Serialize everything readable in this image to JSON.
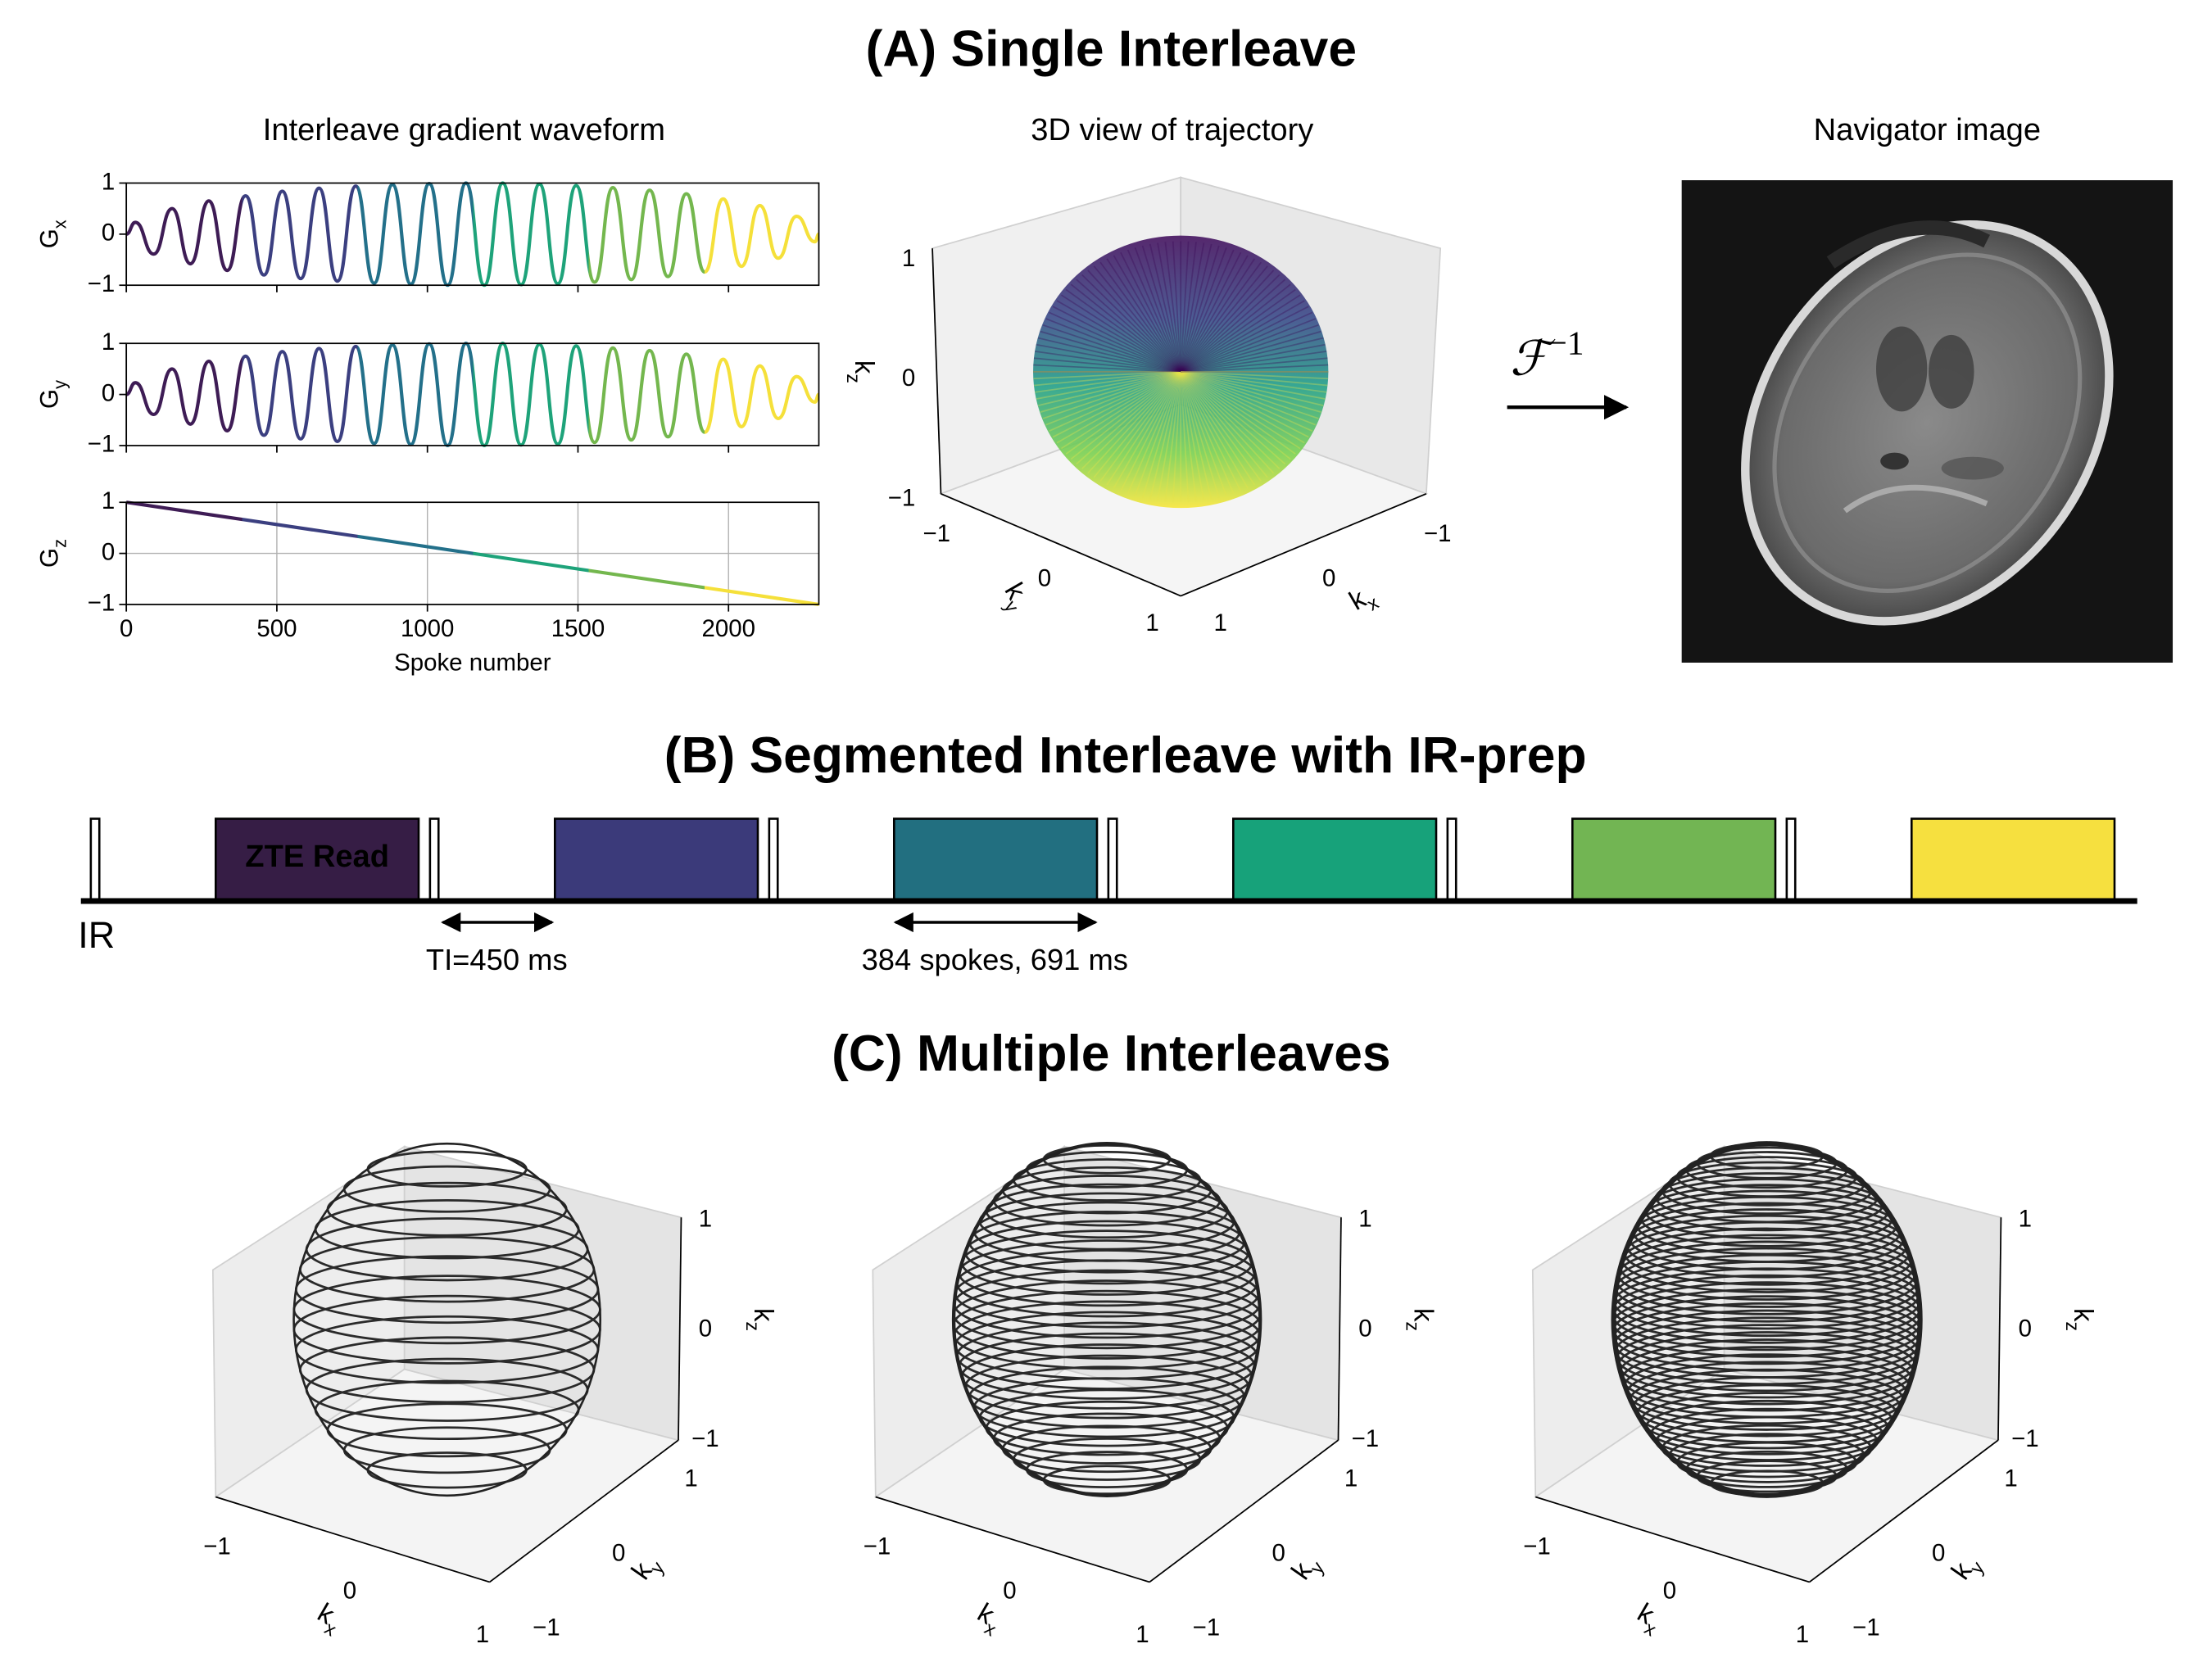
{
  "panel_a": {
    "title": "(A) Single Interleave",
    "waveform": {
      "title": "Interleave gradient waveform",
      "xlabel": "Spoke number",
      "xlim": [
        0,
        2300
      ],
      "xticks": [
        0,
        500,
        1000,
        1500,
        2000
      ],
      "x": [
        0,
        30,
        91,
        152,
        213,
        274,
        335,
        396,
        457,
        518,
        579,
        640,
        701,
        762,
        823,
        884,
        945,
        1006,
        1067,
        1128,
        1189,
        1250,
        1311,
        1372,
        1433,
        1494,
        1555,
        1616,
        1677,
        1738,
        1799,
        1860,
        1921,
        1982,
        2043,
        2104,
        2165,
        2226,
        2287,
        2300
      ],
      "segment_edges": [
        0,
        384,
        768,
        1152,
        1536,
        1920,
        2304
      ],
      "colors": [
        "#3e1c55",
        "#3b3f80",
        "#23708a",
        "#1ea37a",
        "#74b74e",
        "#f5e03a"
      ],
      "subplots": [
        {
          "symbol": "G",
          "subscript": "x",
          "ylim": [
            -1,
            1
          ],
          "yticks": [
            {
              "value": -1,
              "label": "−1"
            },
            0,
            1
          ],
          "values": [
            0,
            0.23,
            -0.39,
            0.5,
            -0.58,
            0.65,
            -0.71,
            0.75,
            -0.8,
            0.84,
            -0.87,
            0.9,
            -0.92,
            0.94,
            -0.96,
            0.97,
            -0.98,
            0.99,
            -1,
            1,
            -1,
            1,
            -0.99,
            0.98,
            -0.97,
            0.95,
            -0.94,
            0.91,
            -0.89,
            0.86,
            -0.83,
            0.79,
            -0.74,
            0.69,
            -0.63,
            0.56,
            -0.47,
            0.35,
            -0.15,
            0
          ]
        },
        {
          "symbol": "G",
          "subscript": "y",
          "ylim": [
            -1,
            1
          ],
          "yticks": [
            {
              "value": -1,
              "label": "−1"
            },
            0,
            1
          ],
          "values": [
            0,
            0.23,
            -0.39,
            0.5,
            -0.58,
            0.65,
            -0.71,
            0.75,
            -0.8,
            0.84,
            -0.87,
            0.9,
            -0.92,
            0.94,
            -0.96,
            0.97,
            -0.98,
            0.99,
            -1,
            1,
            -1,
            1,
            -0.99,
            0.98,
            -0.97,
            0.95,
            -0.94,
            0.91,
            -0.89,
            0.86,
            -0.83,
            0.79,
            -0.74,
            0.69,
            -0.63,
            0.56,
            -0.47,
            0.35,
            -0.15,
            0
          ]
        },
        {
          "symbol": "G",
          "subscript": "z",
          "ylim": [
            -1,
            1
          ],
          "yticks": [
            {
              "value": -1,
              "label": "−1"
            },
            0,
            1
          ],
          "x": [
            0,
            2300
          ],
          "values": [
            1,
            -1
          ],
          "grid": true
        }
      ]
    },
    "trajectory": {
      "title": "3D view of trajectory",
      "kx": {
        "symbol": "k",
        "subscript": "x",
        "lim": [
          -1,
          1
        ],
        "ticks": [
          {
            "value": -1,
            "label": "−1"
          },
          0,
          1
        ]
      },
      "ky": {
        "symbol": "k",
        "subscript": "y",
        "lim": [
          -1,
          1
        ],
        "ticks": [
          {
            "value": -1,
            "label": "−1"
          },
          0,
          1
        ]
      },
      "kz": {
        "symbol": "k",
        "subscript": "z",
        "lim": [
          -1,
          1
        ],
        "ticks": [
          {
            "value": -1,
            "label": "−1"
          },
          0,
          1
        ]
      }
    },
    "transform": {
      "symbol": "ℱ",
      "superscript": "−1"
    },
    "navigator": {
      "title": "Navigator image"
    }
  },
  "panel_b": {
    "title": "(B) Segmented Interleave with IR-prep",
    "blocks": [
      {
        "color": "#361d45",
        "label": "ZTE Read"
      },
      {
        "color": "#3b3a7a"
      },
      {
        "color": "#226f80"
      },
      {
        "color": "#17a27a"
      },
      {
        "color": "#72b553"
      },
      {
        "color": "#f6e03f"
      }
    ],
    "ir_label": "IR",
    "ti_label": "TI=450 ms",
    "segment_label": "384 spokes, 691 ms"
  },
  "panel_c": {
    "title": "(C) Multiple Interleaves",
    "plots": [
      {
        "kx": {
          "symbol": "k",
          "subscript": "x",
          "lim": [
            -1,
            1
          ],
          "ticks": [
            {
              "value": -1,
              "label": "−1"
            },
            0,
            1
          ]
        },
        "ky": {
          "symbol": "k",
          "subscript": "y",
          "lim": [
            -1,
            1
          ],
          "ticks": [
            {
              "value": -1,
              "label": "−1"
            },
            0,
            1
          ]
        },
        "kz": {
          "symbol": "k",
          "subscript": "z",
          "lim": [
            -1,
            1
          ],
          "ticks": [
            {
              "value": -1,
              "label": "−1"
            },
            0,
            1
          ]
        }
      },
      {
        "kx": {
          "symbol": "k",
          "subscript": "x",
          "lim": [
            -1,
            1
          ],
          "ticks": [
            {
              "value": -1,
              "label": "−1"
            },
            0,
            1
          ]
        },
        "ky": {
          "symbol": "k",
          "subscript": "y",
          "lim": [
            -1,
            1
          ],
          "ticks": [
            {
              "value": -1,
              "label": "−1"
            },
            0,
            1
          ]
        },
        "kz": {
          "symbol": "k",
          "subscript": "z",
          "lim": [
            -1,
            1
          ],
          "ticks": [
            {
              "value": -1,
              "label": "−1"
            },
            0,
            1
          ]
        }
      },
      {
        "kx": {
          "symbol": "k",
          "subscript": "x",
          "lim": [
            -1,
            1
          ],
          "ticks": [
            {
              "value": -1,
              "label": "−1"
            },
            0,
            1
          ]
        },
        "ky": {
          "symbol": "k",
          "subscript": "y",
          "lim": [
            -1,
            1
          ],
          "ticks": [
            {
              "value": -1,
              "label": "−1"
            },
            0,
            1
          ]
        },
        "kz": {
          "symbol": "k",
          "subscript": "z",
          "lim": [
            -1,
            1
          ],
          "ticks": [
            {
              "value": -1,
              "label": "−1"
            },
            0,
            1
          ]
        }
      }
    ]
  }
}
